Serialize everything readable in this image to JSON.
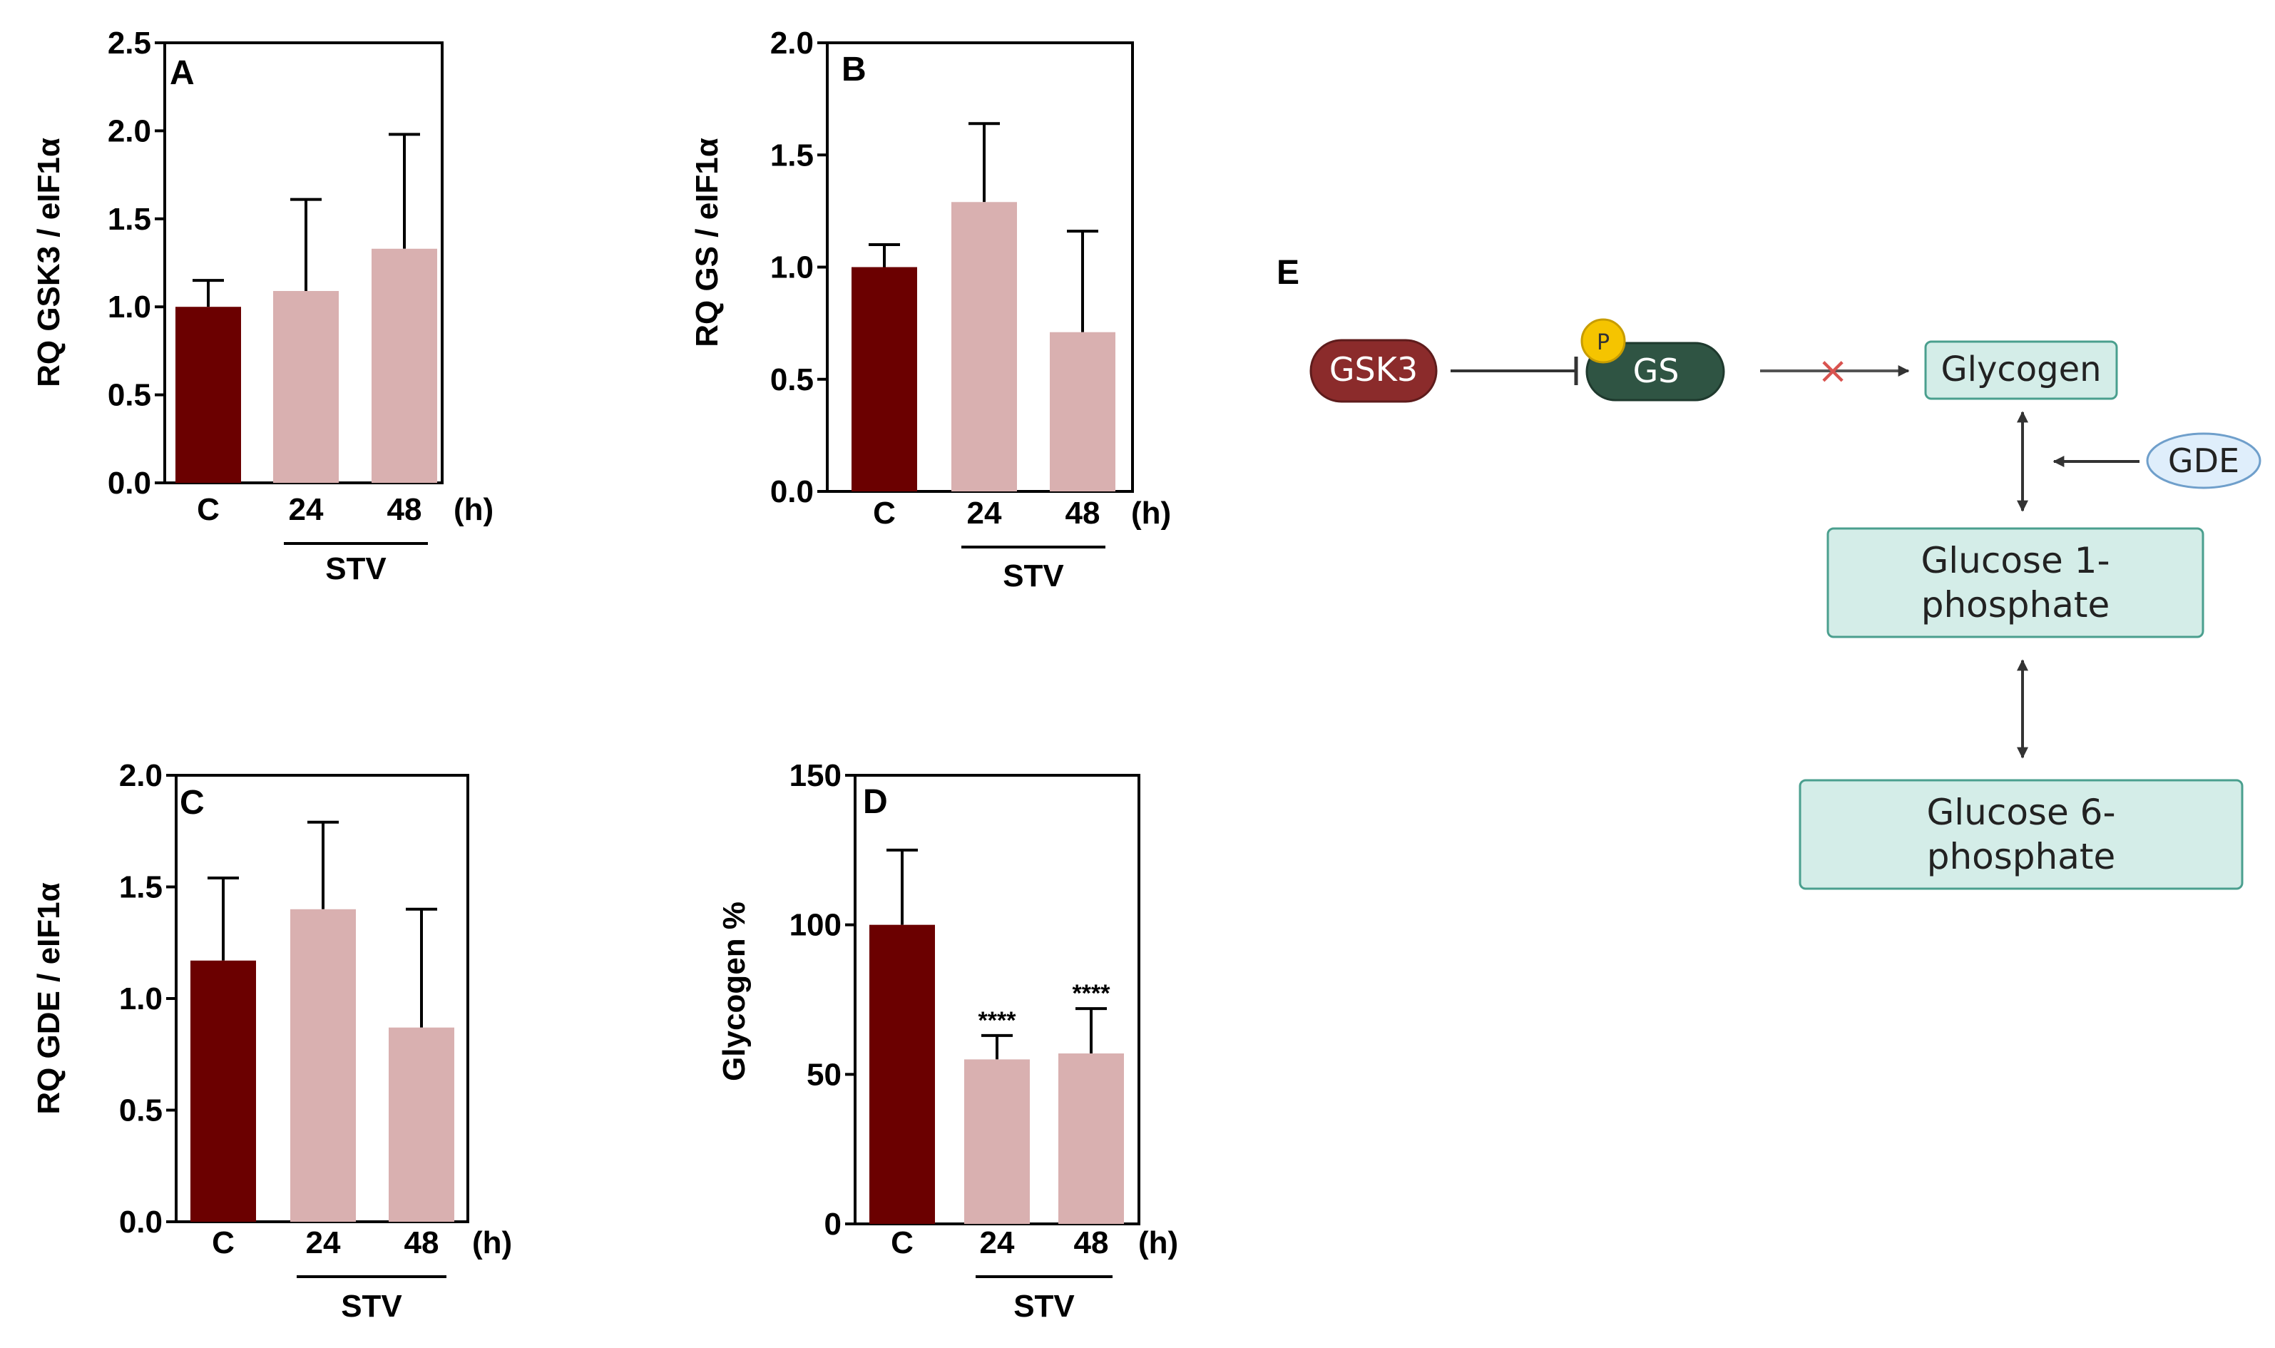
{
  "colors": {
    "control_bar": "#6b0000",
    "stv_bar": "#d9b0b0",
    "gsk3_fill": "#8b2b2b",
    "gs_fill": "#2f5443",
    "phospho_fill": "#f5c400",
    "node_fill": "#d4ede8",
    "node_stroke": "#4a9f8e",
    "gde_fill": "#dfeefb",
    "gde_stroke": "#6f9fcb",
    "inhibit_x": "#d9534f"
  },
  "chart_data": [
    {
      "id": "A",
      "type": "bar",
      "panel_label": "A",
      "ylabel": "RQ GSK3 / eIF1α",
      "categories": [
        "C",
        "24",
        "48"
      ],
      "values": [
        1.0,
        1.09,
        1.33
      ],
      "errors": [
        0.15,
        0.52,
        0.65
      ],
      "annotations": [
        "",
        "",
        ""
      ],
      "ylim": [
        0,
        2.5
      ],
      "yticks": [
        "0.0",
        "0.5",
        "1.0",
        "1.5",
        "2.0",
        "2.5"
      ],
      "unit_label": "(h)",
      "group_label": "STV"
    },
    {
      "id": "B",
      "type": "bar",
      "panel_label": "B",
      "ylabel": "RQ GS / eIF1α",
      "categories": [
        "C",
        "24",
        "48"
      ],
      "values": [
        1.0,
        1.29,
        0.71
      ],
      "errors": [
        0.1,
        0.35,
        0.45
      ],
      "annotations": [
        "",
        "",
        ""
      ],
      "ylim": [
        0,
        2.0
      ],
      "yticks": [
        "0.0",
        "0.5",
        "1.0",
        "1.5",
        "2.0"
      ],
      "unit_label": "(h)",
      "group_label": "STV"
    },
    {
      "id": "C",
      "type": "bar",
      "panel_label": "C",
      "ylabel": "RQ GDE / eIF1α",
      "categories": [
        "C",
        "24",
        "48"
      ],
      "values": [
        1.17,
        1.4,
        0.87
      ],
      "errors": [
        0.37,
        0.39,
        0.53
      ],
      "annotations": [
        "",
        "",
        ""
      ],
      "ylim": [
        0,
        2.0
      ],
      "yticks": [
        "0.0",
        "0.5",
        "1.0",
        "1.5",
        "2.0"
      ],
      "unit_label": "(h)",
      "group_label": "STV"
    },
    {
      "id": "D",
      "type": "bar",
      "panel_label": "D",
      "ylabel": "Glycogen %",
      "categories": [
        "C",
        "24",
        "48"
      ],
      "values": [
        100,
        55,
        57
      ],
      "errors": [
        25,
        8,
        15
      ],
      "annotations": [
        "",
        "****",
        "****"
      ],
      "ylim": [
        0,
        150
      ],
      "yticks": [
        "0",
        "50",
        "100",
        "150"
      ],
      "unit_label": "(h)",
      "group_label": "STV"
    }
  ],
  "diagram": {
    "panel_label": "E",
    "gsk3": "GSK3",
    "gs": "GS",
    "phospho": "P",
    "glycogen": "Glycogen",
    "gde": "GDE",
    "g1p_line1": "Glucose 1-",
    "g1p_line2": "phosphate",
    "g6p_line1": "Glucose 6-",
    "g6p_line2": "phosphate",
    "inhibited_mark": "×"
  }
}
